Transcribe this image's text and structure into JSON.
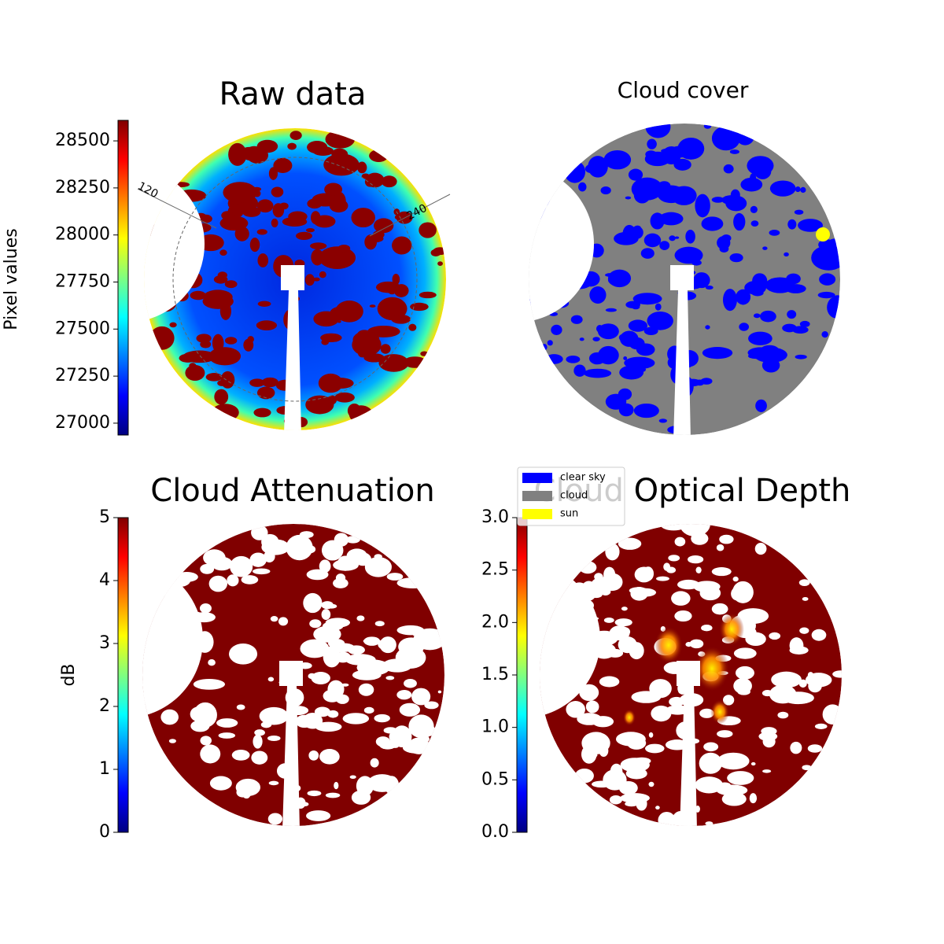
{
  "chart_data": [
    {
      "type": "heatmap",
      "title": "Raw data",
      "colorbar_label": "Pixel values",
      "colormap": "jet",
      "ylim": [
        26937,
        28609
      ],
      "yticks": [
        27000,
        27250,
        27500,
        27750,
        28000,
        28250,
        28500
      ],
      "annotations": [
        "120",
        "240"
      ]
    },
    {
      "type": "categorical-map",
      "title": "Cloud cover",
      "series": [
        {
          "name": "clear sky",
          "color": "#0000ff"
        },
        {
          "name": "cloud",
          "color": "#808080"
        },
        {
          "name": "sun",
          "color": "#ffff00"
        }
      ]
    },
    {
      "type": "heatmap",
      "title": "Cloud Attenuation",
      "colorbar_label": "dB",
      "colormap": "jet",
      "ylim": [
        0,
        5
      ],
      "yticks": [
        0,
        1,
        2,
        3,
        4,
        5
      ]
    },
    {
      "type": "heatmap",
      "title": "Cloud Optical Depth",
      "colormap": "jet",
      "ylim": [
        0,
        3
      ],
      "yticks": [
        {
          "value": 0,
          "label": "0.0"
        },
        {
          "value": 0.5,
          "label": "0.5"
        },
        {
          "value": 1,
          "label": "1.0"
        },
        {
          "value": 1.5,
          "label": "1.5"
        },
        {
          "value": 2,
          "label": "2.0"
        },
        {
          "value": 2.5,
          "label": "2.5"
        },
        {
          "value": 3,
          "label": "3.0"
        }
      ]
    }
  ]
}
